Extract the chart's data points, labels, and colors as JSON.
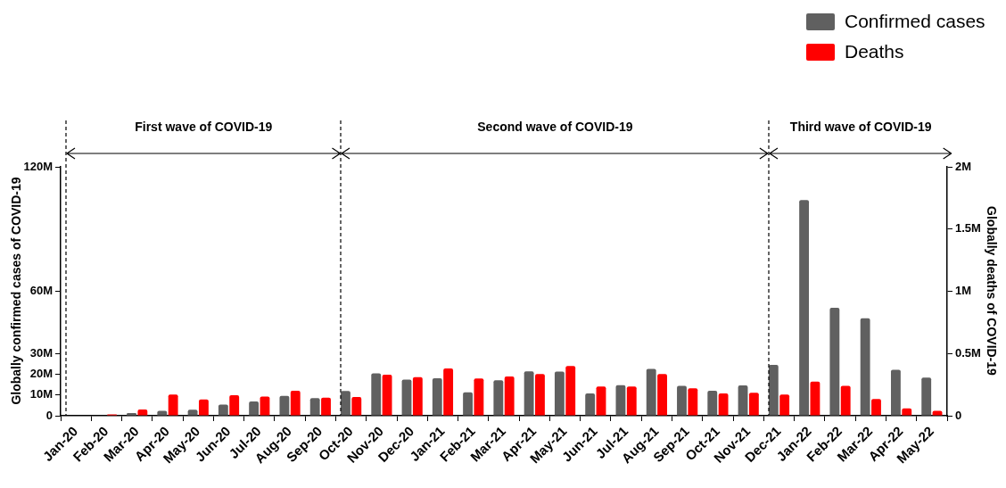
{
  "chart_data": {
    "type": "bar",
    "categories": [
      "Jan-20",
      "Feb-20",
      "Mar-20",
      "Apr-20",
      "May-20",
      "Jun-20",
      "Jul-20",
      "Aug-20",
      "Sep-20",
      "Oct-20",
      "Nov-20",
      "Dec-20",
      "Jan-21",
      "Feb-21",
      "Mar-21",
      "Apr-21",
      "May-21",
      "Jun-21",
      "Jul-21",
      "Aug-21",
      "Sep-21",
      "Oct-21",
      "Nov-21",
      "Dec-21",
      "Jan-22",
      "Feb-22",
      "Mar-22",
      "Apr-22",
      "May-22"
    ],
    "series": [
      {
        "name": "Confirmed cases",
        "color": "#606060",
        "values": [
          0,
          200000,
          1300000,
          2400000,
          2900000,
          5400000,
          6900000,
          9600000,
          8500000,
          11900000,
          20400000,
          17400000,
          18100000,
          11300000,
          17100000,
          21400000,
          21300000,
          10800000,
          14700000,
          22600000,
          14400000,
          12000000,
          14600000,
          24500000,
          104000000,
          52000000,
          47000000,
          22200000,
          18400000
        ]
      },
      {
        "name": "Deaths",
        "color": "#ff0000",
        "axis": "y2",
        "values": [
          0,
          10000,
          50000,
          170000,
          130000,
          165000,
          155000,
          200000,
          145000,
          150000,
          330000,
          310000,
          380000,
          300000,
          315000,
          335000,
          400000,
          235000,
          235000,
          335000,
          220000,
          180000,
          185000,
          170000,
          275000,
          240000,
          135000,
          60000,
          40000
        ]
      }
    ],
    "ylim": [
      0,
      120000000
    ],
    "yticks": [
      0,
      {
        "value": 10000000,
        "label": "10M"
      },
      {
        "value": 20000000,
        "label": "20M"
      },
      {
        "value": 30000000,
        "label": "30M"
      },
      {
        "value": 60000000,
        "label": "60M"
      },
      {
        "value": 120000000,
        "label": "120M"
      }
    ],
    "y2lim": [
      0,
      2000000
    ],
    "y2ticks": [
      0,
      {
        "value": 500000,
        "label": "0.5M"
      },
      {
        "value": 1000000,
        "label": "1M"
      },
      {
        "value": 1500000,
        "label": "1.5M"
      },
      {
        "value": 2000000,
        "label": "2M"
      }
    ],
    "ylabel": "Globally confirmed cases of COVID-19",
    "y2label": "Globally deaths of COVID-19",
    "annotations": [
      "First wave of COVID-19",
      "Second wave of COVID-19",
      "Third wave of COVID-19"
    ],
    "legend": "top right"
  }
}
